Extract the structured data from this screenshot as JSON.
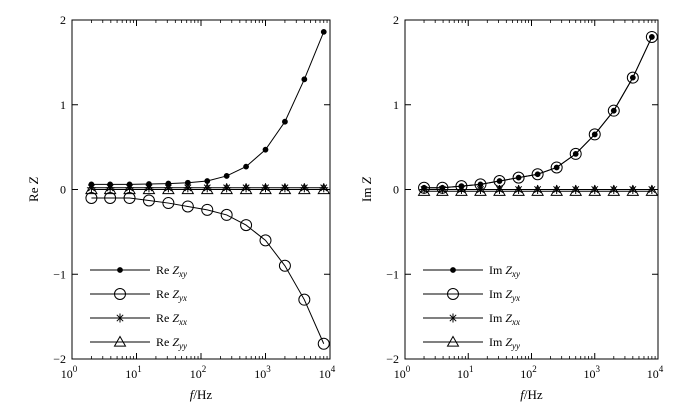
{
  "chart_data": [
    {
      "type": "line",
      "panel": "left",
      "xlabel": {
        "italic": "f",
        "rest": "/Hz"
      },
      "ylabel": {
        "prefix": "Re ",
        "italic": "Z"
      },
      "x_scale": "log",
      "xlim": [
        1,
        10000
      ],
      "ylim": [
        -2,
        2
      ],
      "y_ticks": [
        -2,
        -1,
        0,
        1,
        2
      ],
      "x_ticks": [
        {
          "base": "10",
          "exp": "0",
          "value": 1
        },
        {
          "base": "10",
          "exp": "1",
          "value": 10
        },
        {
          "base": "10",
          "exp": "2",
          "value": 100
        },
        {
          "base": "10",
          "exp": "3",
          "value": 1000
        },
        {
          "base": "10",
          "exp": "4",
          "value": 10000
        }
      ],
      "x": [
        2,
        3.9,
        7.8,
        15.6,
        31.2,
        62.5,
        125,
        250,
        500,
        1000,
        2000,
        4000,
        8000
      ],
      "grid": false,
      "legend_position": "bottom-left",
      "series": [
        {
          "name": {
            "prefix": "Re ",
            "italic": "Z",
            "sub": "xy"
          },
          "marker": "dot",
          "values": [
            0.06,
            0.06,
            0.06,
            0.065,
            0.07,
            0.08,
            0.1,
            0.16,
            0.27,
            0.47,
            0.8,
            1.3,
            1.86
          ]
        },
        {
          "name": {
            "prefix": "Re ",
            "italic": "Z",
            "sub": "yx"
          },
          "marker": "circle",
          "values": [
            -0.1,
            -0.1,
            -0.1,
            -0.13,
            -0.16,
            -0.2,
            -0.24,
            -0.3,
            -0.42,
            -0.6,
            -0.9,
            -1.3,
            -1.82
          ]
        },
        {
          "name": {
            "prefix": "Re ",
            "italic": "Z",
            "sub": "xx"
          },
          "marker": "asterisk",
          "values": [
            0.02,
            0.02,
            0.02,
            0.02,
            0.02,
            0.02,
            0.02,
            0.02,
            0.02,
            0.02,
            0.02,
            0.02,
            0.02
          ]
        },
        {
          "name": {
            "prefix": "Re ",
            "italic": "Z",
            "sub": "yy"
          },
          "marker": "triangle",
          "values": [
            0.0,
            0.0,
            0.0,
            0.0,
            0.0,
            0.0,
            0.0,
            0.0,
            0.0,
            0.0,
            0.0,
            0.0,
            0.0
          ]
        }
      ]
    },
    {
      "type": "line",
      "panel": "right",
      "xlabel": {
        "italic": "f",
        "rest": "/Hz"
      },
      "ylabel": {
        "prefix": "Im ",
        "italic": "Z"
      },
      "x_scale": "log",
      "xlim": [
        1,
        10000
      ],
      "ylim": [
        -2,
        2
      ],
      "y_ticks": [
        -2,
        -1,
        0,
        1,
        2
      ],
      "x_ticks": [
        {
          "base": "10",
          "exp": "0",
          "value": 1
        },
        {
          "base": "10",
          "exp": "1",
          "value": 10
        },
        {
          "base": "10",
          "exp": "2",
          "value": 100
        },
        {
          "base": "10",
          "exp": "3",
          "value": 1000
        },
        {
          "base": "10",
          "exp": "4",
          "value": 10000
        }
      ],
      "x": [
        2,
        3.9,
        7.8,
        15.6,
        31.2,
        62.5,
        125,
        250,
        500,
        1000,
        2000,
        4000,
        8000
      ],
      "grid": false,
      "legend_position": "bottom-left",
      "series": [
        {
          "name": {
            "prefix": "Im ",
            "italic": "Z",
            "sub": "xy"
          },
          "marker": "dot",
          "values": [
            0.02,
            0.02,
            0.04,
            0.06,
            0.1,
            0.14,
            0.18,
            0.26,
            0.42,
            0.65,
            0.93,
            1.32,
            1.8
          ]
        },
        {
          "name": {
            "prefix": "Im ",
            "italic": "Z",
            "sub": "yx"
          },
          "marker": "circle",
          "values": [
            0.02,
            0.02,
            0.04,
            0.06,
            0.1,
            0.14,
            0.18,
            0.26,
            0.42,
            0.65,
            0.93,
            1.32,
            1.8
          ]
        },
        {
          "name": {
            "prefix": "Im ",
            "italic": "Z",
            "sub": "xx"
          },
          "marker": "asterisk",
          "values": [
            0.0,
            0.0,
            0.0,
            0.0,
            0.0,
            0.0,
            0.0,
            0.0,
            0.0,
            0.0,
            0.0,
            0.0,
            0.0
          ]
        },
        {
          "name": {
            "prefix": "Im ",
            "italic": "Z",
            "sub": "yy"
          },
          "marker": "triangle",
          "values": [
            -0.02,
            -0.02,
            -0.02,
            -0.02,
            -0.02,
            -0.02,
            -0.02,
            -0.02,
            -0.02,
            -0.02,
            -0.02,
            -0.02,
            -0.02
          ]
        }
      ]
    }
  ]
}
